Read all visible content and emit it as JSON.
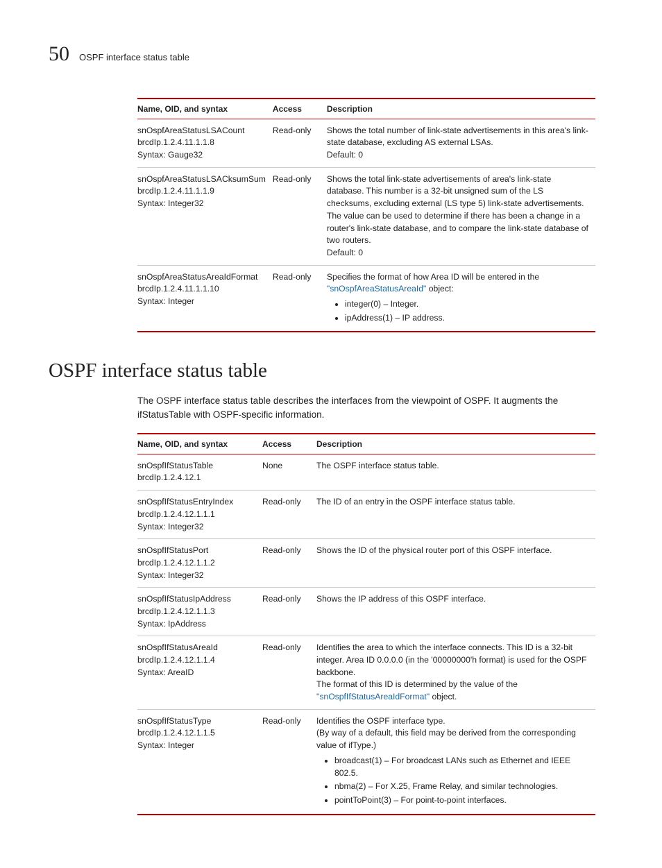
{
  "header": {
    "chapnum": "50",
    "runtitle": "OSPF interface status table"
  },
  "table1": {
    "headers": {
      "c1": "Name, OID, and syntax",
      "c2": "Access",
      "c3": "Description"
    },
    "rows": [
      {
        "name1": "snOspfAreaStatusLSACount",
        "name2": "brcdIp.1.2.4.11.1.1.8",
        "name3": "Syntax: Gauge32",
        "access": "Read-only",
        "d1": "Shows the total number of link-state advertisements in this area's link-state database, excluding AS external LSAs.",
        "d2": "Default: 0"
      },
      {
        "name1": "snOspfAreaStatusLSACksumSum",
        "name2": "brcdIp.1.2.4.11.1.1.9",
        "name3": "Syntax: Integer32",
        "access": "Read-only",
        "d1": "Shows the total link-state advertisements of area's link-state database. This number is a 32-bit unsigned sum of the LS checksums, excluding external (LS type 5) link-state advertisements. The value can be used to determine if there has been a change in a router's link-state database, and to compare the link-state database of two routers.",
        "d2": "Default: 0"
      },
      {
        "name1": "snOspfAreaStatusAreaIdFormat",
        "name2": "brcdIp.1.2.4.11.1.1.10",
        "name3": "Syntax: Integer",
        "access": "Read-only",
        "d1a": "Specifies the format of how Area ID will be entered in the ",
        "d1link": "\"snOspfAreaStatusAreaId\"",
        "d1b": " object:",
        "b1": "integer(0) – Integer.",
        "b2": "ipAddress(1) – IP address."
      }
    ]
  },
  "section": {
    "title": "OSPF interface status table",
    "intro": "The OSPF interface status table describes the interfaces from the viewpoint of OSPF. It augments the ifStatusTable with OSPF-specific information."
  },
  "table2": {
    "headers": {
      "c1": "Name, OID, and syntax",
      "c2": "Access",
      "c3": "Description"
    },
    "rows": [
      {
        "name1": "snOspfIfStatusTable",
        "name2": "brcdIp.1.2.4.12.1",
        "name3": "",
        "access": "None",
        "d1": "The OSPF interface status table."
      },
      {
        "name1": "snOspfIfStatusEntryIndex",
        "name2": "brcdIp.1.2.4.12.1.1.1",
        "name3": "Syntax: Integer32",
        "access": "Read-only",
        "d1": "The ID of an entry in the OSPF interface status table."
      },
      {
        "name1": "snOspfIfStatusPort",
        "name2": "brcdIp.1.2.4.12.1.1.2",
        "name3": "Syntax: Integer32",
        "access": "Read-only",
        "d1": "Shows the ID of the physical router port of this OSPF interface."
      },
      {
        "name1": "snOspfIfStatusIpAddress",
        "name2": "brcdIp.1.2.4.12.1.1.3",
        "name3": "Syntax: IpAddress",
        "access": "Read-only",
        "d1": "Shows the IP address of this OSPF interface."
      },
      {
        "name1": "snOspfIfStatusAreaId",
        "name2": "brcdIp.1.2.4.12.1.1.4",
        "name3": "Syntax: AreaID",
        "access": "Read-only",
        "d1": "Identifies the area to which the interface connects. This ID is a 32-bit integer. Area ID 0.0.0.0 (in the '00000000'h format) is used for the OSPF backbone.",
        "d2a": "The format of this ID is determined by the value of the ",
        "d2link": "\"snOspfIfStatusAreaIdFormat\"",
        "d2b": " object."
      },
      {
        "name1": "snOspfIfStatusType",
        "name2": "brcdIp.1.2.4.12.1.1.5",
        "name3": "Syntax: Integer",
        "access": "Read-only",
        "d1": "Identifies the OSPF interface type.",
        "d2": "(By way of a default, this field may be derived from the corresponding value of ifType.)",
        "b1": "broadcast(1) – For broadcast LANs such as Ethernet and IEEE 802.5.",
        "b2": "nbma(2) – For X.25, Frame Relay, and similar technologies.",
        "b3": "pointToPoint(3) – For point-to-point interfaces."
      }
    ]
  }
}
